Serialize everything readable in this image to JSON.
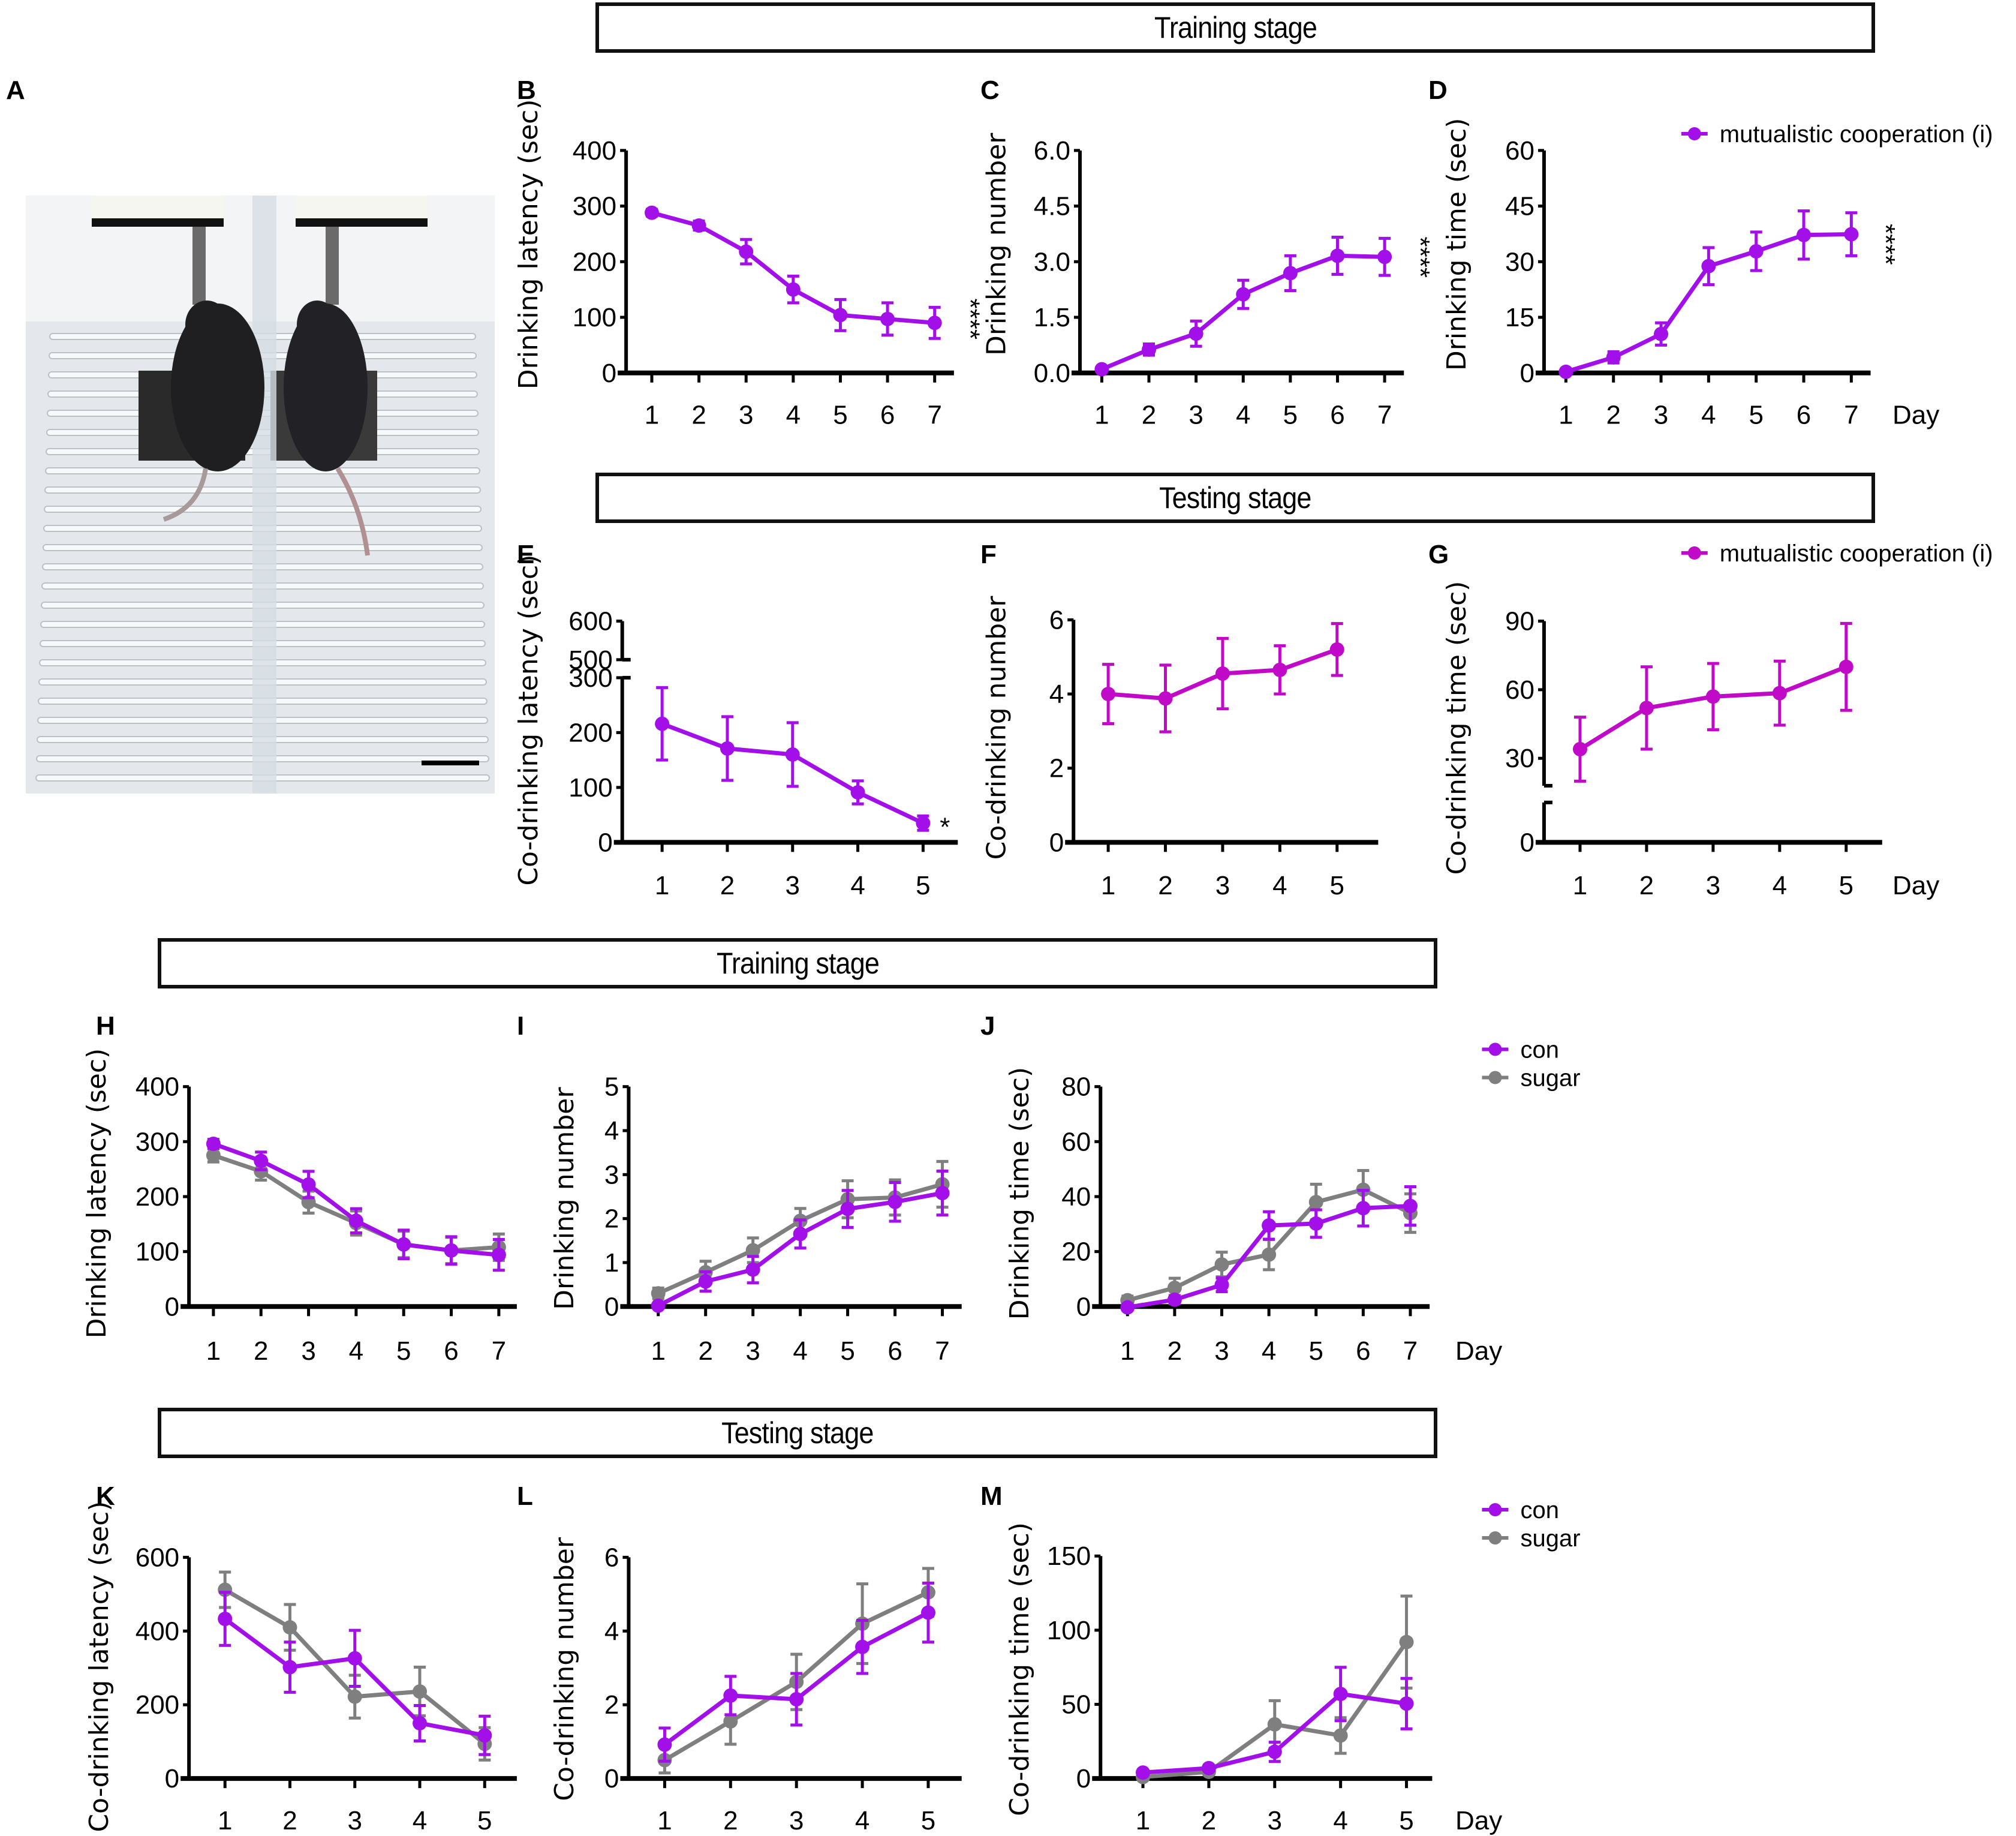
{
  "figure": {
    "stage_headers": [
      {
        "id": "top-training",
        "label": "Training stage"
      },
      {
        "id": "top-testing",
        "label": "Testing stage"
      },
      {
        "id": "bottom-training",
        "label": "Training stage"
      },
      {
        "id": "bottom-testing",
        "label": "Testing stage"
      }
    ],
    "panel_letters": [
      "A",
      "B",
      "C",
      "D",
      "E",
      "F",
      "G",
      "H",
      "I",
      "J",
      "K",
      "L",
      "M"
    ],
    "photo": {
      "panel": "A",
      "description": "Two mice in adjacent acrylic chambers drinking from water spouts",
      "scale_bar": true
    },
    "colors": {
      "violet": "#A30FE8",
      "magenta": "#C00AC8",
      "gray": "#7F7F7F",
      "axis": "#000000"
    }
  },
  "chart_data": [
    {
      "panel": "B",
      "type": "line",
      "title": "",
      "xlabel": "",
      "ylabel": "Drinking latency (sec)",
      "categories": [
        "1",
        "2",
        "3",
        "4",
        "5",
        "6",
        "7"
      ],
      "yticks": [
        "0",
        "100",
        "200",
        "300",
        "400"
      ],
      "ylim": [
        0,
        400
      ],
      "series": [
        {
          "name": "mutualistic cooperation (i)",
          "color": "#A30FE8",
          "values": [
            288,
            265,
            218,
            150,
            104,
            97,
            90
          ],
          "errors": [
            6,
            8,
            22,
            24,
            28,
            29,
            28
          ]
        }
      ],
      "annotation": "****",
      "legend": null,
      "day_label": null
    },
    {
      "panel": "C",
      "type": "line",
      "title": "",
      "xlabel": "",
      "ylabel": "Drinking number",
      "categories": [
        "1",
        "2",
        "3",
        "4",
        "5",
        "6",
        "7"
      ],
      "yticks": [
        "0.0",
        "1.5",
        "3.0",
        "4.5",
        "6.0"
      ],
      "ylim": [
        0,
        6
      ],
      "series": [
        {
          "name": "mutualistic cooperation (i)",
          "color": "#A30FE8",
          "values": [
            0.1,
            0.63,
            1.06,
            2.12,
            2.69,
            3.16,
            3.13
          ],
          "errors": [
            0.05,
            0.15,
            0.34,
            0.38,
            0.47,
            0.5,
            0.5
          ]
        }
      ],
      "annotation": "****",
      "legend": null,
      "day_label": null
    },
    {
      "panel": "D",
      "type": "line",
      "title": "",
      "xlabel": "Day",
      "ylabel": "Drinking time (sec)",
      "categories": [
        "1",
        "2",
        "3",
        "4",
        "5",
        "6",
        "7"
      ],
      "yticks": [
        "0",
        "15",
        "30",
        "45",
        "60"
      ],
      "ylim": [
        0,
        60
      ],
      "series": [
        {
          "name": "mutualistic cooperation (i)",
          "color": "#A30FE8",
          "values": [
            0.3,
            4.2,
            10.5,
            28.8,
            32.8,
            37.2,
            37.4
          ],
          "errors": [
            0.3,
            1.5,
            3.0,
            5.0,
            5.2,
            6.5,
            5.8
          ]
        }
      ],
      "annotation": "****",
      "legend": [
        "mutualistic cooperation (i)"
      ],
      "day_label": "Day"
    },
    {
      "panel": "E",
      "type": "line",
      "title": "",
      "xlabel": "",
      "ylabel": "Co-drinking latency (sec)",
      "categories": [
        "1",
        "2",
        "3",
        "4",
        "5"
      ],
      "yticks": [
        "0",
        "100",
        "200",
        "300",
        "500",
        "600"
      ],
      "ylim": [
        0,
        600
      ],
      "axis_break": [
        300,
        500
      ],
      "series": [
        {
          "name": "mutualistic cooperation (i)",
          "color": "#A30FE8",
          "values": [
            216,
            171,
            160,
            91,
            35
          ],
          "errors": [
            66,
            58,
            58,
            21,
            13
          ]
        }
      ],
      "annotation": "*",
      "legend": null,
      "day_label": null
    },
    {
      "panel": "F",
      "type": "line",
      "title": "",
      "xlabel": "",
      "ylabel": "Co-drinking number",
      "categories": [
        "1",
        "2",
        "3",
        "4",
        "5"
      ],
      "yticks": [
        "0",
        "2",
        "4",
        "6"
      ],
      "ylim": [
        0,
        6
      ],
      "series": [
        {
          "name": "mutualistic cooperation (i)",
          "color": "#C00AC8",
          "values": [
            4.0,
            3.88,
            4.55,
            4.65,
            5.2
          ],
          "errors": [
            0.8,
            0.9,
            0.95,
            0.65,
            0.7
          ]
        }
      ],
      "annotation": null,
      "legend": null,
      "day_label": null
    },
    {
      "panel": "G",
      "type": "line",
      "title": "",
      "xlabel": "Day",
      "ylabel": "Co-drinking time (sec)",
      "categories": [
        "1",
        "2",
        "3",
        "4",
        "5"
      ],
      "yticks": [
        "0",
        "30",
        "60",
        "90"
      ],
      "ylim": [
        0,
        90
      ],
      "axis_break": [
        10,
        18
      ],
      "series": [
        {
          "name": "mutualistic cooperation (i)",
          "color": "#C00AC8",
          "values": [
            34,
            52,
            57,
            58.5,
            70
          ],
          "errors": [
            14,
            18,
            14.5,
            14,
            19
          ]
        }
      ],
      "annotation": null,
      "legend": [
        "mutualistic cooperation (i)"
      ],
      "day_label": "Day"
    },
    {
      "panel": "H",
      "type": "line",
      "title": "",
      "xlabel": "",
      "ylabel": "Drinking latency (sec)",
      "categories": [
        "1",
        "2",
        "3",
        "4",
        "5",
        "6",
        "7"
      ],
      "yticks": [
        "0",
        "100",
        "200",
        "300",
        "400"
      ],
      "ylim": [
        0,
        400
      ],
      "series": [
        {
          "name": "sugar",
          "color": "#7F7F7F",
          "values": [
            275,
            246,
            190,
            152,
            113,
            102,
            108
          ],
          "errors": [
            12,
            16,
            20,
            22,
            24,
            24,
            24
          ]
        },
        {
          "name": "con",
          "color": "#A30FE8",
          "values": [
            296,
            265,
            222,
            156,
            113,
            102,
            94
          ],
          "errors": [
            8,
            16,
            24,
            22,
            26,
            25,
            28
          ]
        }
      ],
      "annotation": null,
      "legend": null,
      "day_label": null
    },
    {
      "panel": "I",
      "type": "line",
      "title": "",
      "xlabel": "",
      "ylabel": "Drinking number",
      "categories": [
        "1",
        "2",
        "3",
        "4",
        "5",
        "6",
        "7"
      ],
      "yticks": [
        "0",
        "1",
        "2",
        "3",
        "4",
        "5"
      ],
      "ylim": [
        0,
        5
      ],
      "series": [
        {
          "name": "sugar",
          "color": "#7F7F7F",
          "values": [
            0.3,
            0.78,
            1.28,
            1.95,
            2.44,
            2.48,
            2.78
          ],
          "errors": [
            0.12,
            0.25,
            0.28,
            0.28,
            0.42,
            0.4,
            0.52
          ]
        },
        {
          "name": "con",
          "color": "#A30FE8",
          "values": [
            0.02,
            0.57,
            0.84,
            1.65,
            2.22,
            2.38,
            2.58
          ],
          "errors": [
            0.05,
            0.22,
            0.3,
            0.32,
            0.42,
            0.44,
            0.5
          ]
        }
      ],
      "annotation": null,
      "legend": null,
      "day_label": null
    },
    {
      "panel": "J",
      "type": "line",
      "title": "",
      "xlabel": "Day",
      "ylabel": "Drinking time (sec)",
      "categories": [
        "1",
        "2",
        "3",
        "4",
        "5",
        "6",
        "7"
      ],
      "yticks": [
        "0",
        "20",
        "40",
        "60",
        "80"
      ],
      "ylim": [
        0,
        80
      ],
      "series": [
        {
          "name": "sugar",
          "color": "#7F7F7F",
          "values": [
            2.3,
            6.8,
            15.3,
            18.9,
            38,
            42.5,
            34
          ],
          "errors": [
            1.5,
            3.5,
            4.5,
            5.5,
            6.5,
            7,
            7
          ]
        },
        {
          "name": "con",
          "color": "#A30FE8",
          "values": [
            -0.3,
            2.5,
            7.9,
            29.5,
            30.2,
            35.8,
            36.6
          ],
          "errors": [
            1,
            1.5,
            2.5,
            5,
            5,
            6.5,
            7
          ]
        }
      ],
      "annotation": null,
      "legend": [
        "con",
        "sugar"
      ],
      "day_label": "Day"
    },
    {
      "panel": "K",
      "type": "line",
      "title": "",
      "xlabel": "",
      "ylabel": "Co-drinking latency (sec)",
      "categories": [
        "1",
        "2",
        "3",
        "4",
        "5"
      ],
      "yticks": [
        "0",
        "200",
        "400",
        "600"
      ],
      "ylim": [
        0,
        600
      ],
      "series": [
        {
          "name": "sugar",
          "color": "#7F7F7F",
          "values": [
            512,
            410,
            222,
            236,
            94
          ],
          "errors": [
            48,
            62,
            58,
            66,
            44
          ]
        },
        {
          "name": "con",
          "color": "#A30FE8",
          "values": [
            433,
            302,
            326,
            150,
            117
          ],
          "errors": [
            72,
            68,
            76,
            48,
            52
          ]
        }
      ],
      "annotation": null,
      "legend": null,
      "day_label": null
    },
    {
      "panel": "L",
      "type": "line",
      "title": "",
      "xlabel": "",
      "ylabel": "Co-drinking number",
      "categories": [
        "1",
        "2",
        "3",
        "4",
        "5"
      ],
      "yticks": [
        "0",
        "2",
        "4",
        "6"
      ],
      "ylim": [
        0,
        6
      ],
      "series": [
        {
          "name": "sugar",
          "color": "#7F7F7F",
          "values": [
            0.5,
            1.55,
            2.62,
            4.2,
            5.05
          ],
          "errors": [
            0.35,
            0.62,
            0.75,
            1.08,
            0.65
          ]
        },
        {
          "name": "con",
          "color": "#A30FE8",
          "values": [
            0.92,
            2.25,
            2.15,
            3.57,
            4.5
          ],
          "errors": [
            0.45,
            0.52,
            0.7,
            0.72,
            0.8
          ]
        }
      ],
      "annotation": null,
      "legend": null,
      "day_label": null
    },
    {
      "panel": "M",
      "type": "line",
      "title": "",
      "xlabel": "Day",
      "ylabel": "Co-drinking time (sec)",
      "categories": [
        "1",
        "2",
        "3",
        "4",
        "5"
      ],
      "yticks": [
        "0",
        "50",
        "100",
        "150"
      ],
      "ylim": [
        0,
        150
      ],
      "series": [
        {
          "name": "sugar",
          "color": "#7F7F7F",
          "values": [
            1,
            4.5,
            36.5,
            29,
            92
          ],
          "errors": [
            1,
            1.5,
            16,
            12,
            31
          ]
        },
        {
          "name": "con",
          "color": "#A30FE8",
          "values": [
            4,
            7,
            18,
            57,
            50.5
          ],
          "errors": [
            1.5,
            2,
            6.5,
            18,
            17
          ]
        }
      ],
      "annotation": null,
      "legend": [
        "con",
        "sugar"
      ],
      "day_label": "Day"
    }
  ]
}
